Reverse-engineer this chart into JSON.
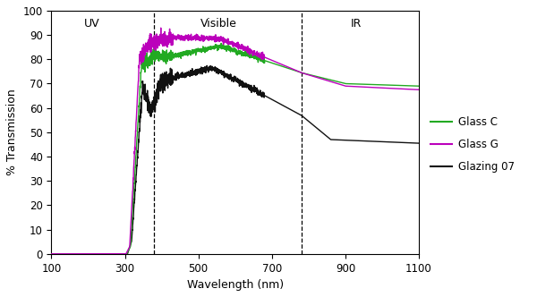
{
  "title": "",
  "xlabel": "Wavelength (nm)",
  "ylabel": "% Transmission",
  "xlim": [
    100,
    1100
  ],
  "ylim": [
    0,
    100
  ],
  "xticks": [
    100,
    300,
    500,
    700,
    900,
    1100
  ],
  "yticks": [
    0,
    10,
    20,
    30,
    40,
    50,
    60,
    70,
    80,
    90,
    100
  ],
  "uv_label": "UV",
  "visible_label": "Visible",
  "ir_label": "IR",
  "uv_x": 210,
  "visible_x": 555,
  "ir_x": 930,
  "uv_vline": 380,
  "ir_vline": 780,
  "glass_c_color": "#22aa22",
  "glass_g_color": "#bb00bb",
  "glazing07_color": "#111111",
  "legend_labels": [
    "Glass C",
    "Glass G",
    "Glazing 07"
  ],
  "background_color": "#ffffff",
  "figsize": [
    6.0,
    3.32
  ],
  "dpi": 100
}
